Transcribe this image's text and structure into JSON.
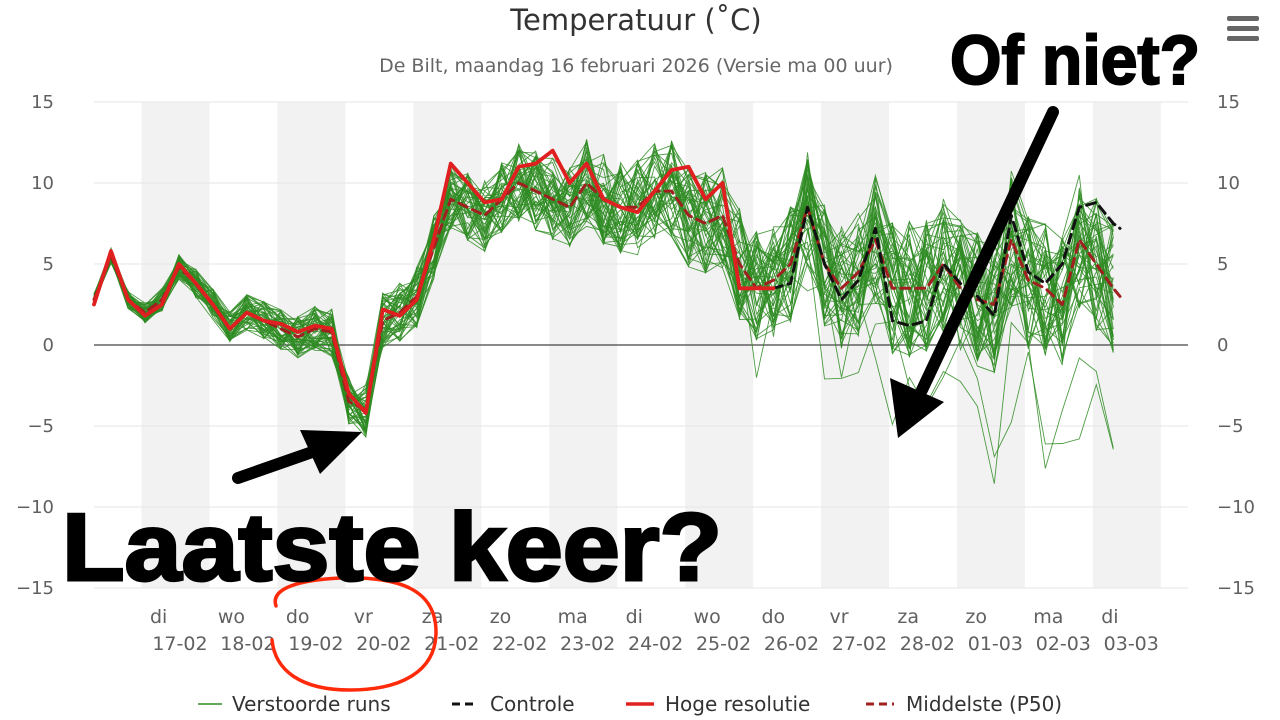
{
  "chart_data": {
    "type": "line",
    "title": "Temperatuur (˚C)",
    "subtitle": "De Bilt, maandag 16 februari 2026 (Versie ma 00 uur)",
    "ylim": [
      -15,
      15
    ],
    "yticks": [
      15,
      10,
      5,
      0,
      -5,
      -10,
      -15
    ],
    "ytick_labels": [
      "15",
      "10",
      "5",
      "0",
      "−5",
      "−10",
      "−15"
    ],
    "xlim": [
      0,
      16.1
    ],
    "xticks": [
      {
        "x": 1,
        "day": "di",
        "date": "17-02"
      },
      {
        "x": 2,
        "day": "wo",
        "date": "18-02"
      },
      {
        "x": 3,
        "day": "do",
        "date": "19-02"
      },
      {
        "x": 4,
        "day": "vr",
        "date": "20-02"
      },
      {
        "x": 5,
        "day": "za",
        "date": "21-02"
      },
      {
        "x": 6,
        "day": "zo",
        "date": "22-02"
      },
      {
        "x": 7,
        "day": "ma",
        "date": "23-02"
      },
      {
        "x": 8,
        "day": "di",
        "date": "24-02"
      },
      {
        "x": 9,
        "day": "wo",
        "date": "25-02"
      },
      {
        "x": 10,
        "day": "do",
        "date": "26-02"
      },
      {
        "x": 11,
        "day": "vr",
        "date": "27-02"
      },
      {
        "x": 12,
        "day": "za",
        "date": "28-02"
      },
      {
        "x": 13,
        "day": "zo",
        "date": "01-03"
      },
      {
        "x": 14,
        "day": "ma",
        "date": "02-03"
      },
      {
        "x": 15,
        "day": "di",
        "date": "03-03"
      }
    ],
    "shaded_bands": [
      [
        0.7,
        1.7
      ],
      [
        2.7,
        3.7
      ],
      [
        4.7,
        5.7
      ],
      [
        6.7,
        7.7
      ],
      [
        8.7,
        9.7
      ],
      [
        10.7,
        11.7
      ],
      [
        12.7,
        13.7
      ],
      [
        14.7,
        15.7
      ]
    ],
    "grid": true,
    "legend_position": "bottom",
    "series": [
      {
        "name": "Hoge resolutie",
        "color": "#e02020",
        "style": "solid",
        "x": [
          0,
          0.25,
          0.5,
          0.75,
          1,
          1.25,
          1.5,
          1.75,
          2,
          2.25,
          2.5,
          2.75,
          3,
          3.25,
          3.5,
          3.75,
          4,
          4.25,
          4.5,
          4.75,
          5,
          5.25,
          5.5,
          5.75,
          6,
          6.25,
          6.5,
          6.75,
          7,
          7.25,
          7.5,
          7.75,
          8,
          8.25,
          8.5,
          8.75,
          9,
          9.25,
          9.5,
          9.75,
          10
        ],
        "y": [
          2.5,
          5.8,
          2.8,
          1.8,
          2.5,
          5,
          3.8,
          2.5,
          1,
          2,
          1.5,
          1.3,
          0.8,
          1.2,
          1,
          -3,
          -4.2,
          2.2,
          1.8,
          2.8,
          6.5,
          11.2,
          10,
          8.8,
          9,
          11,
          11.2,
          12,
          10,
          11.2,
          9,
          8.5,
          8.2,
          9.5,
          10.8,
          11,
          9,
          10,
          3.5,
          3.5,
          3.5
        ]
      },
      {
        "name": "Controle",
        "color": "#111111",
        "style": "dashed",
        "x": [
          10,
          10.25,
          10.5,
          10.75,
          11,
          11.25,
          11.5,
          11.75,
          12,
          12.25,
          12.5,
          12.75,
          13,
          13.25,
          13.5,
          13.75,
          14,
          14.25,
          14.5,
          14.75,
          15,
          15.1
        ],
        "y": [
          3.5,
          3.8,
          8.5,
          5,
          2.8,
          4,
          7.2,
          1.5,
          1.2,
          1.5,
          5,
          3.8,
          3,
          1.8,
          8,
          4.5,
          3.8,
          5,
          8.5,
          8.8,
          7.5,
          7.2
        ]
      },
      {
        "name": "Middelste (P50)",
        "color": "#a02020",
        "style": "dashed",
        "x": [
          0,
          0.25,
          0.5,
          0.75,
          1,
          1.25,
          1.5,
          1.75,
          2,
          2.25,
          2.5,
          2.75,
          3,
          3.25,
          3.5,
          3.75,
          4,
          4.25,
          4.5,
          4.75,
          5,
          5.25,
          5.5,
          5.75,
          6,
          6.25,
          6.5,
          6.75,
          7,
          7.25,
          7.5,
          7.75,
          8,
          8.25,
          8.5,
          8.75,
          9,
          9.25,
          9.5,
          9.75,
          10,
          10.25,
          10.5,
          10.75,
          11,
          11.25,
          11.5,
          11.75,
          12,
          12.25,
          12.5,
          12.75,
          13,
          13.25,
          13.5,
          13.75,
          14,
          14.25,
          14.5,
          14.75,
          15,
          15.1
        ],
        "y": [
          2.8,
          5.5,
          2.8,
          2,
          2.8,
          4.8,
          3.8,
          2.5,
          1,
          2,
          1.5,
          1,
          0.5,
          1,
          0.8,
          -3.5,
          -4,
          1.5,
          2,
          3,
          6,
          9,
          8.5,
          8,
          9,
          10,
          9.5,
          9,
          8.5,
          10,
          9,
          8.5,
          8.5,
          9.5,
          9.5,
          8,
          7.5,
          8,
          5,
          3.5,
          4,
          5,
          8.5,
          5,
          3.5,
          4.5,
          6.5,
          3.5,
          3.5,
          3.5,
          5,
          3.5,
          2.8,
          2.5,
          6.5,
          4,
          3.5,
          2.5,
          6.5,
          5,
          3.5,
          3
        ]
      }
    ],
    "ensemble_series_name": "Verstoorde runs",
    "ensemble_color": "#2e8b22",
    "ensemble_note_count": 50
  },
  "legend": {
    "items": [
      {
        "label": "Verstoorde runs",
        "color": "#2e8b22",
        "style": "thin-solid"
      },
      {
        "label": "Controle",
        "color": "#111111",
        "style": "dashed"
      },
      {
        "label": "Hoge resolutie",
        "color": "#e02020",
        "style": "solid"
      },
      {
        "label": "Middelste (P50)",
        "color": "#a02020",
        "style": "dashed"
      }
    ]
  },
  "annotations": {
    "top_right": "Of niet?",
    "bottom_left": "Laatste keer?"
  },
  "menu": {
    "icon": "hamburger-menu-icon"
  }
}
